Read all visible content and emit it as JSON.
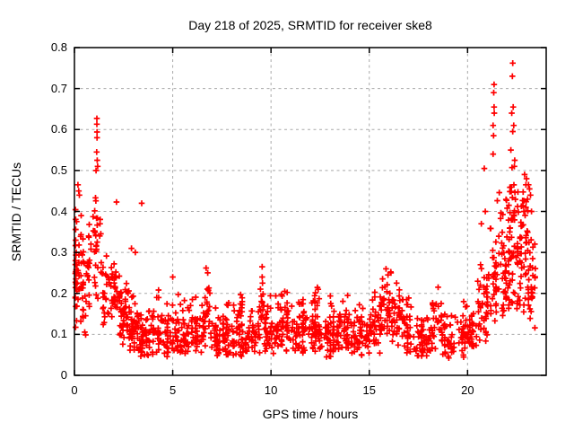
{
  "page": {
    "background": "#ffffff"
  },
  "chart_data": {
    "type": "scatter",
    "title": "Day 218 of 2025, SRMTID for receiver ske8",
    "xlabel": "GPS time / hours",
    "ylabel": "SRMTID / TECUs",
    "xlim": [
      0,
      24
    ],
    "ylim": [
      0,
      0.8
    ],
    "x_ticks": [
      0,
      5,
      10,
      15,
      20
    ],
    "y_ticks": [
      0,
      0.1,
      0.2,
      0.3,
      0.4,
      0.5,
      0.6,
      0.7,
      0.8
    ],
    "grid": {
      "visible": true,
      "color": "#a9a9a9",
      "style": "dashed"
    },
    "axis_color": "#000000",
    "legend": "none",
    "series": [
      {
        "name": "SRMTID",
        "marker": "+",
        "color": "#ff0000",
        "density_bands": {
          "format": [
            "x_start",
            "x_end",
            "count",
            "y_min",
            "y_max",
            "shape"
          ],
          "rows": [
            [
              0.0,
              0.15,
              26,
              0.1,
              0.44,
              1.0
            ],
            [
              0.1,
              0.45,
              28,
              0.12,
              0.42,
              1.2
            ],
            [
              0.4,
              0.75,
              20,
              0.09,
              0.36,
              1.2
            ],
            [
              0.7,
              1.05,
              16,
              0.14,
              0.46,
              1.1
            ],
            [
              1.0,
              1.4,
              26,
              0.18,
              0.5,
              1.0
            ],
            [
              1.4,
              1.85,
              22,
              0.12,
              0.32,
              1.2
            ],
            [
              1.85,
              2.3,
              36,
              0.13,
              0.3,
              1.1
            ],
            [
              2.3,
              2.8,
              46,
              0.07,
              0.27,
              1.3
            ],
            [
              2.8,
              3.3,
              46,
              0.05,
              0.21,
              1.5
            ],
            [
              3.3,
              4.0,
              48,
              0.04,
              0.18,
              1.5
            ],
            [
              4.0,
              4.5,
              30,
              0.05,
              0.23,
              1.5
            ],
            [
              4.5,
              5.0,
              32,
              0.04,
              0.19,
              1.5
            ],
            [
              5.0,
              5.6,
              38,
              0.05,
              0.21,
              1.5
            ],
            [
              5.6,
              6.2,
              38,
              0.05,
              0.22,
              1.5
            ],
            [
              6.2,
              6.6,
              24,
              0.05,
              0.18,
              1.4
            ],
            [
              6.55,
              6.9,
              22,
              0.07,
              0.26,
              1.1
            ],
            [
              6.9,
              7.6,
              42,
              0.04,
              0.17,
              1.5
            ],
            [
              7.6,
              8.3,
              44,
              0.04,
              0.19,
              1.5
            ],
            [
              8.3,
              8.55,
              10,
              0.1,
              0.21,
              1.0
            ],
            [
              8.3,
              9.0,
              40,
              0.04,
              0.17,
              1.5
            ],
            [
              9.0,
              9.45,
              26,
              0.05,
              0.18,
              1.4
            ],
            [
              9.45,
              9.65,
              14,
              0.09,
              0.27,
              1.0
            ],
            [
              9.65,
              10.3,
              44,
              0.05,
              0.21,
              1.3
            ],
            [
              10.3,
              11.0,
              48,
              0.05,
              0.22,
              1.3
            ],
            [
              11.0,
              11.7,
              46,
              0.05,
              0.2,
              1.4
            ],
            [
              11.7,
              12.4,
              46,
              0.05,
              0.22,
              1.4
            ],
            [
              12.4,
              13.1,
              46,
              0.04,
              0.2,
              1.4
            ],
            [
              13.1,
              13.8,
              46,
              0.05,
              0.21,
              1.4
            ],
            [
              13.8,
              14.5,
              44,
              0.04,
              0.19,
              1.4
            ],
            [
              14.5,
              15.1,
              40,
              0.04,
              0.2,
              1.4
            ],
            [
              15.1,
              15.6,
              30,
              0.05,
              0.22,
              1.3
            ],
            [
              15.6,
              16.1,
              34,
              0.08,
              0.26,
              1.1
            ],
            [
              16.1,
              16.6,
              34,
              0.07,
              0.25,
              1.2
            ],
            [
              16.6,
              17.2,
              38,
              0.05,
              0.2,
              1.3
            ],
            [
              17.2,
              18.2,
              54,
              0.04,
              0.16,
              1.5
            ],
            [
              18.2,
              18.7,
              26,
              0.06,
              0.22,
              1.2
            ],
            [
              18.7,
              19.8,
              56,
              0.04,
              0.17,
              1.5
            ],
            [
              19.8,
              20.5,
              40,
              0.05,
              0.2,
              1.3
            ],
            [
              20.5,
              21.0,
              36,
              0.07,
              0.3,
              1.2
            ],
            [
              21.0,
              21.6,
              40,
              0.1,
              0.44,
              1.3
            ],
            [
              21.6,
              22.1,
              46,
              0.12,
              0.5,
              1.3
            ],
            [
              22.1,
              22.6,
              56,
              0.14,
              0.55,
              1.2
            ],
            [
              22.6,
              23.1,
              50,
              0.12,
              0.52,
              1.2
            ],
            [
              23.1,
              23.45,
              26,
              0.1,
              0.46,
              1.1
            ]
          ]
        },
        "peak_points": [
          [
            0.18,
            0.465
          ],
          [
            0.22,
            0.45
          ],
          [
            0.25,
            0.44
          ],
          [
            1.14,
            0.627
          ],
          [
            1.14,
            0.613
          ],
          [
            1.15,
            0.594
          ],
          [
            1.15,
            0.58
          ],
          [
            1.13,
            0.545
          ],
          [
            1.16,
            0.525
          ],
          [
            1.18,
            0.51
          ],
          [
            1.1,
            0.5
          ],
          [
            2.14,
            0.423
          ],
          [
            1.3,
            0.37
          ],
          [
            2.9,
            0.31
          ],
          [
            3.1,
            0.3
          ],
          [
            3.42,
            0.42
          ],
          [
            5.0,
            0.24
          ],
          [
            6.7,
            0.262
          ],
          [
            6.78,
            0.25
          ],
          [
            9.55,
            0.265
          ],
          [
            9.55,
            0.24
          ],
          [
            9.57,
            0.225
          ],
          [
            10.7,
            0.205
          ],
          [
            12.4,
            0.21
          ],
          [
            13.9,
            0.195
          ],
          [
            15.85,
            0.26
          ],
          [
            16.1,
            0.25
          ],
          [
            15.95,
            0.245
          ],
          [
            18.5,
            0.215
          ],
          [
            20.85,
            0.505
          ],
          [
            20.9,
            0.4
          ],
          [
            20.7,
            0.37
          ],
          [
            21.35,
            0.71
          ],
          [
            21.33,
            0.69
          ],
          [
            21.35,
            0.655
          ],
          [
            21.36,
            0.64
          ],
          [
            21.3,
            0.61
          ],
          [
            21.32,
            0.585
          ],
          [
            21.3,
            0.54
          ],
          [
            22.3,
            0.762
          ],
          [
            22.28,
            0.73
          ],
          [
            22.32,
            0.655
          ],
          [
            22.25,
            0.64
          ],
          [
            22.35,
            0.61
          ],
          [
            22.3,
            0.595
          ],
          [
            22.2,
            0.55
          ],
          [
            22.4,
            0.525
          ],
          [
            22.38,
            0.51
          ],
          [
            22.9,
            0.49
          ],
          [
            23.0,
            0.48
          ],
          [
            23.1,
            0.465
          ],
          [
            23.15,
            0.455
          ],
          [
            23.2,
            0.44
          ],
          [
            23.05,
            0.43
          ],
          [
            23.25,
            0.4
          ]
        ]
      }
    ],
    "seed": 11
  }
}
